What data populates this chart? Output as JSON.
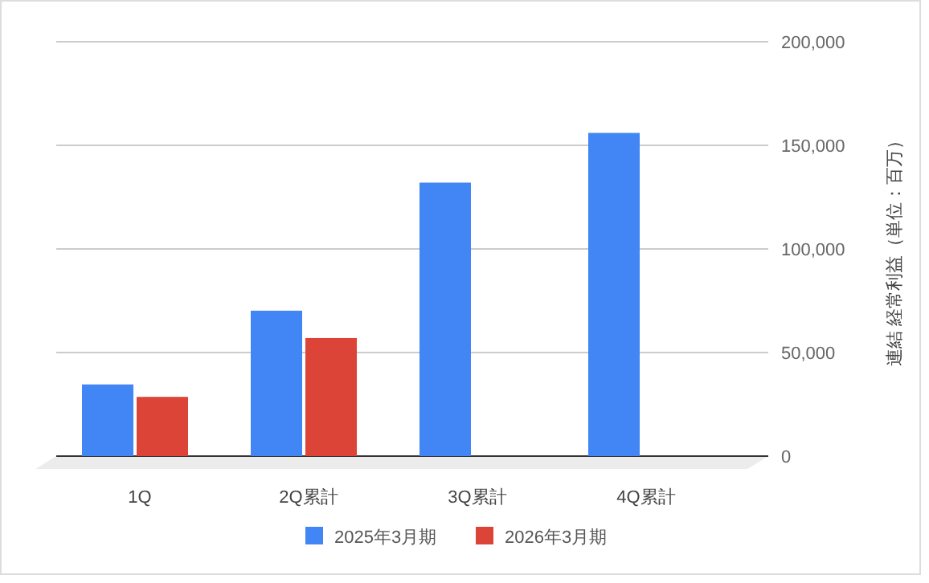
{
  "chart_data": {
    "type": "bar",
    "categories": [
      "1Q",
      "2Q累計",
      "3Q累計",
      "4Q累計"
    ],
    "series": [
      {
        "name": "2025年3月期",
        "color": "#4285f4",
        "values": [
          34600,
          70200,
          132000,
          156000
        ]
      },
      {
        "name": "2026年3月期",
        "color": "#db4437",
        "values": [
          28600,
          57000,
          null,
          null
        ]
      }
    ],
    "ylabel": "連結 経常利益（単位：百万）",
    "ylim": [
      0,
      200000
    ],
    "yticks": [
      0,
      {
        "value": 50000,
        "label": "50,000"
      },
      {
        "value": 100000,
        "label": "100,000"
      },
      {
        "value": 150000,
        "label": "150,000"
      },
      {
        "value": 200000,
        "label": "200,000"
      }
    ],
    "grid": "y",
    "legend": "bottom"
  }
}
